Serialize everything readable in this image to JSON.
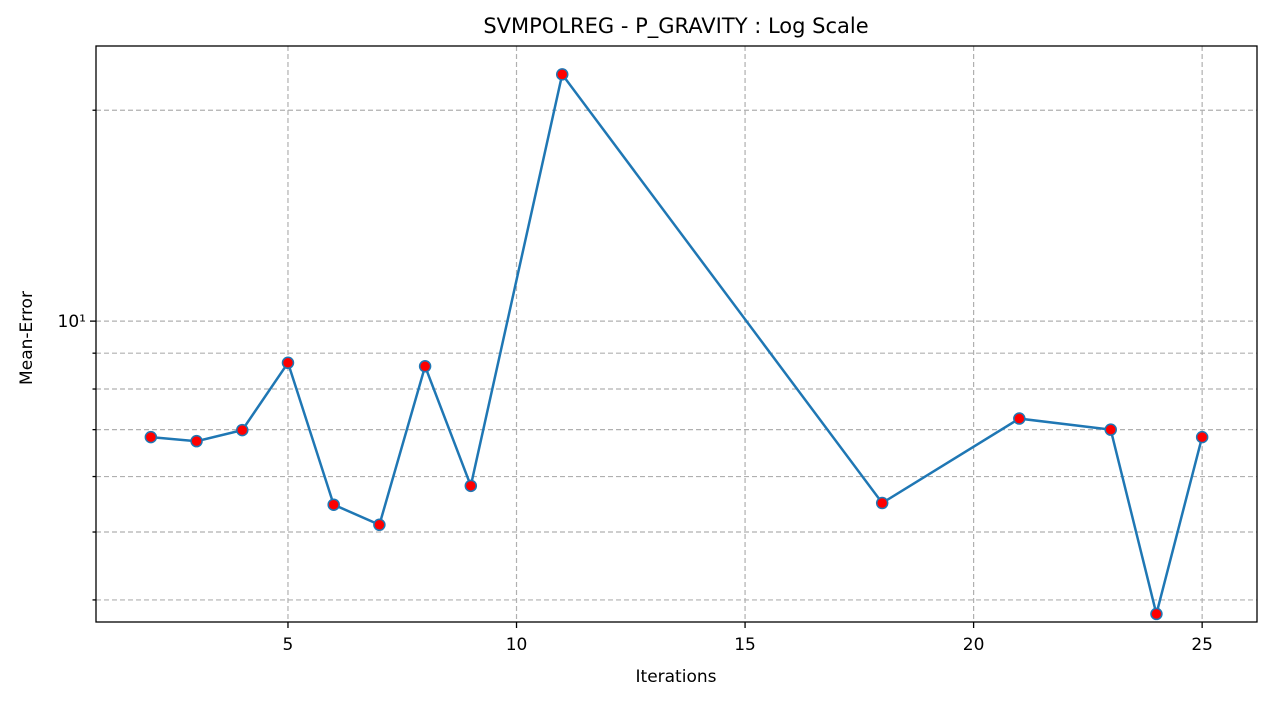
{
  "chart_data": {
    "type": "line",
    "title": "SVMPOLREG - P_GRAVITY : Log Scale",
    "xlabel": "Iterations",
    "ylabel": "Mean-Error",
    "yscale": "log",
    "grid": true,
    "xlim": [
      0.8,
      26.2
    ],
    "ylim": [
      3.72,
      24.7
    ],
    "xticks": [
      5,
      10,
      15,
      20,
      25
    ],
    "yticks_major": [
      10
    ],
    "ytick_labels_major": [
      "10¹"
    ],
    "yticks_minor": [
      4,
      5,
      6,
      7,
      8,
      9,
      20
    ],
    "series": [
      {
        "x": [
          2,
          3,
          4,
          5,
          6,
          7,
          8,
          9,
          11,
          18,
          21,
          23,
          24,
          25
        ],
        "y": [
          6.83,
          6.74,
          6.99,
          8.72,
          5.47,
          5.12,
          8.62,
          5.82,
          22.5,
          5.5,
          7.26,
          7.0,
          3.82,
          6.83
        ]
      }
    ],
    "colors": {
      "line": "#1f77b4",
      "marker_face": "#ff0000",
      "grid": "#b0b0b0"
    }
  }
}
